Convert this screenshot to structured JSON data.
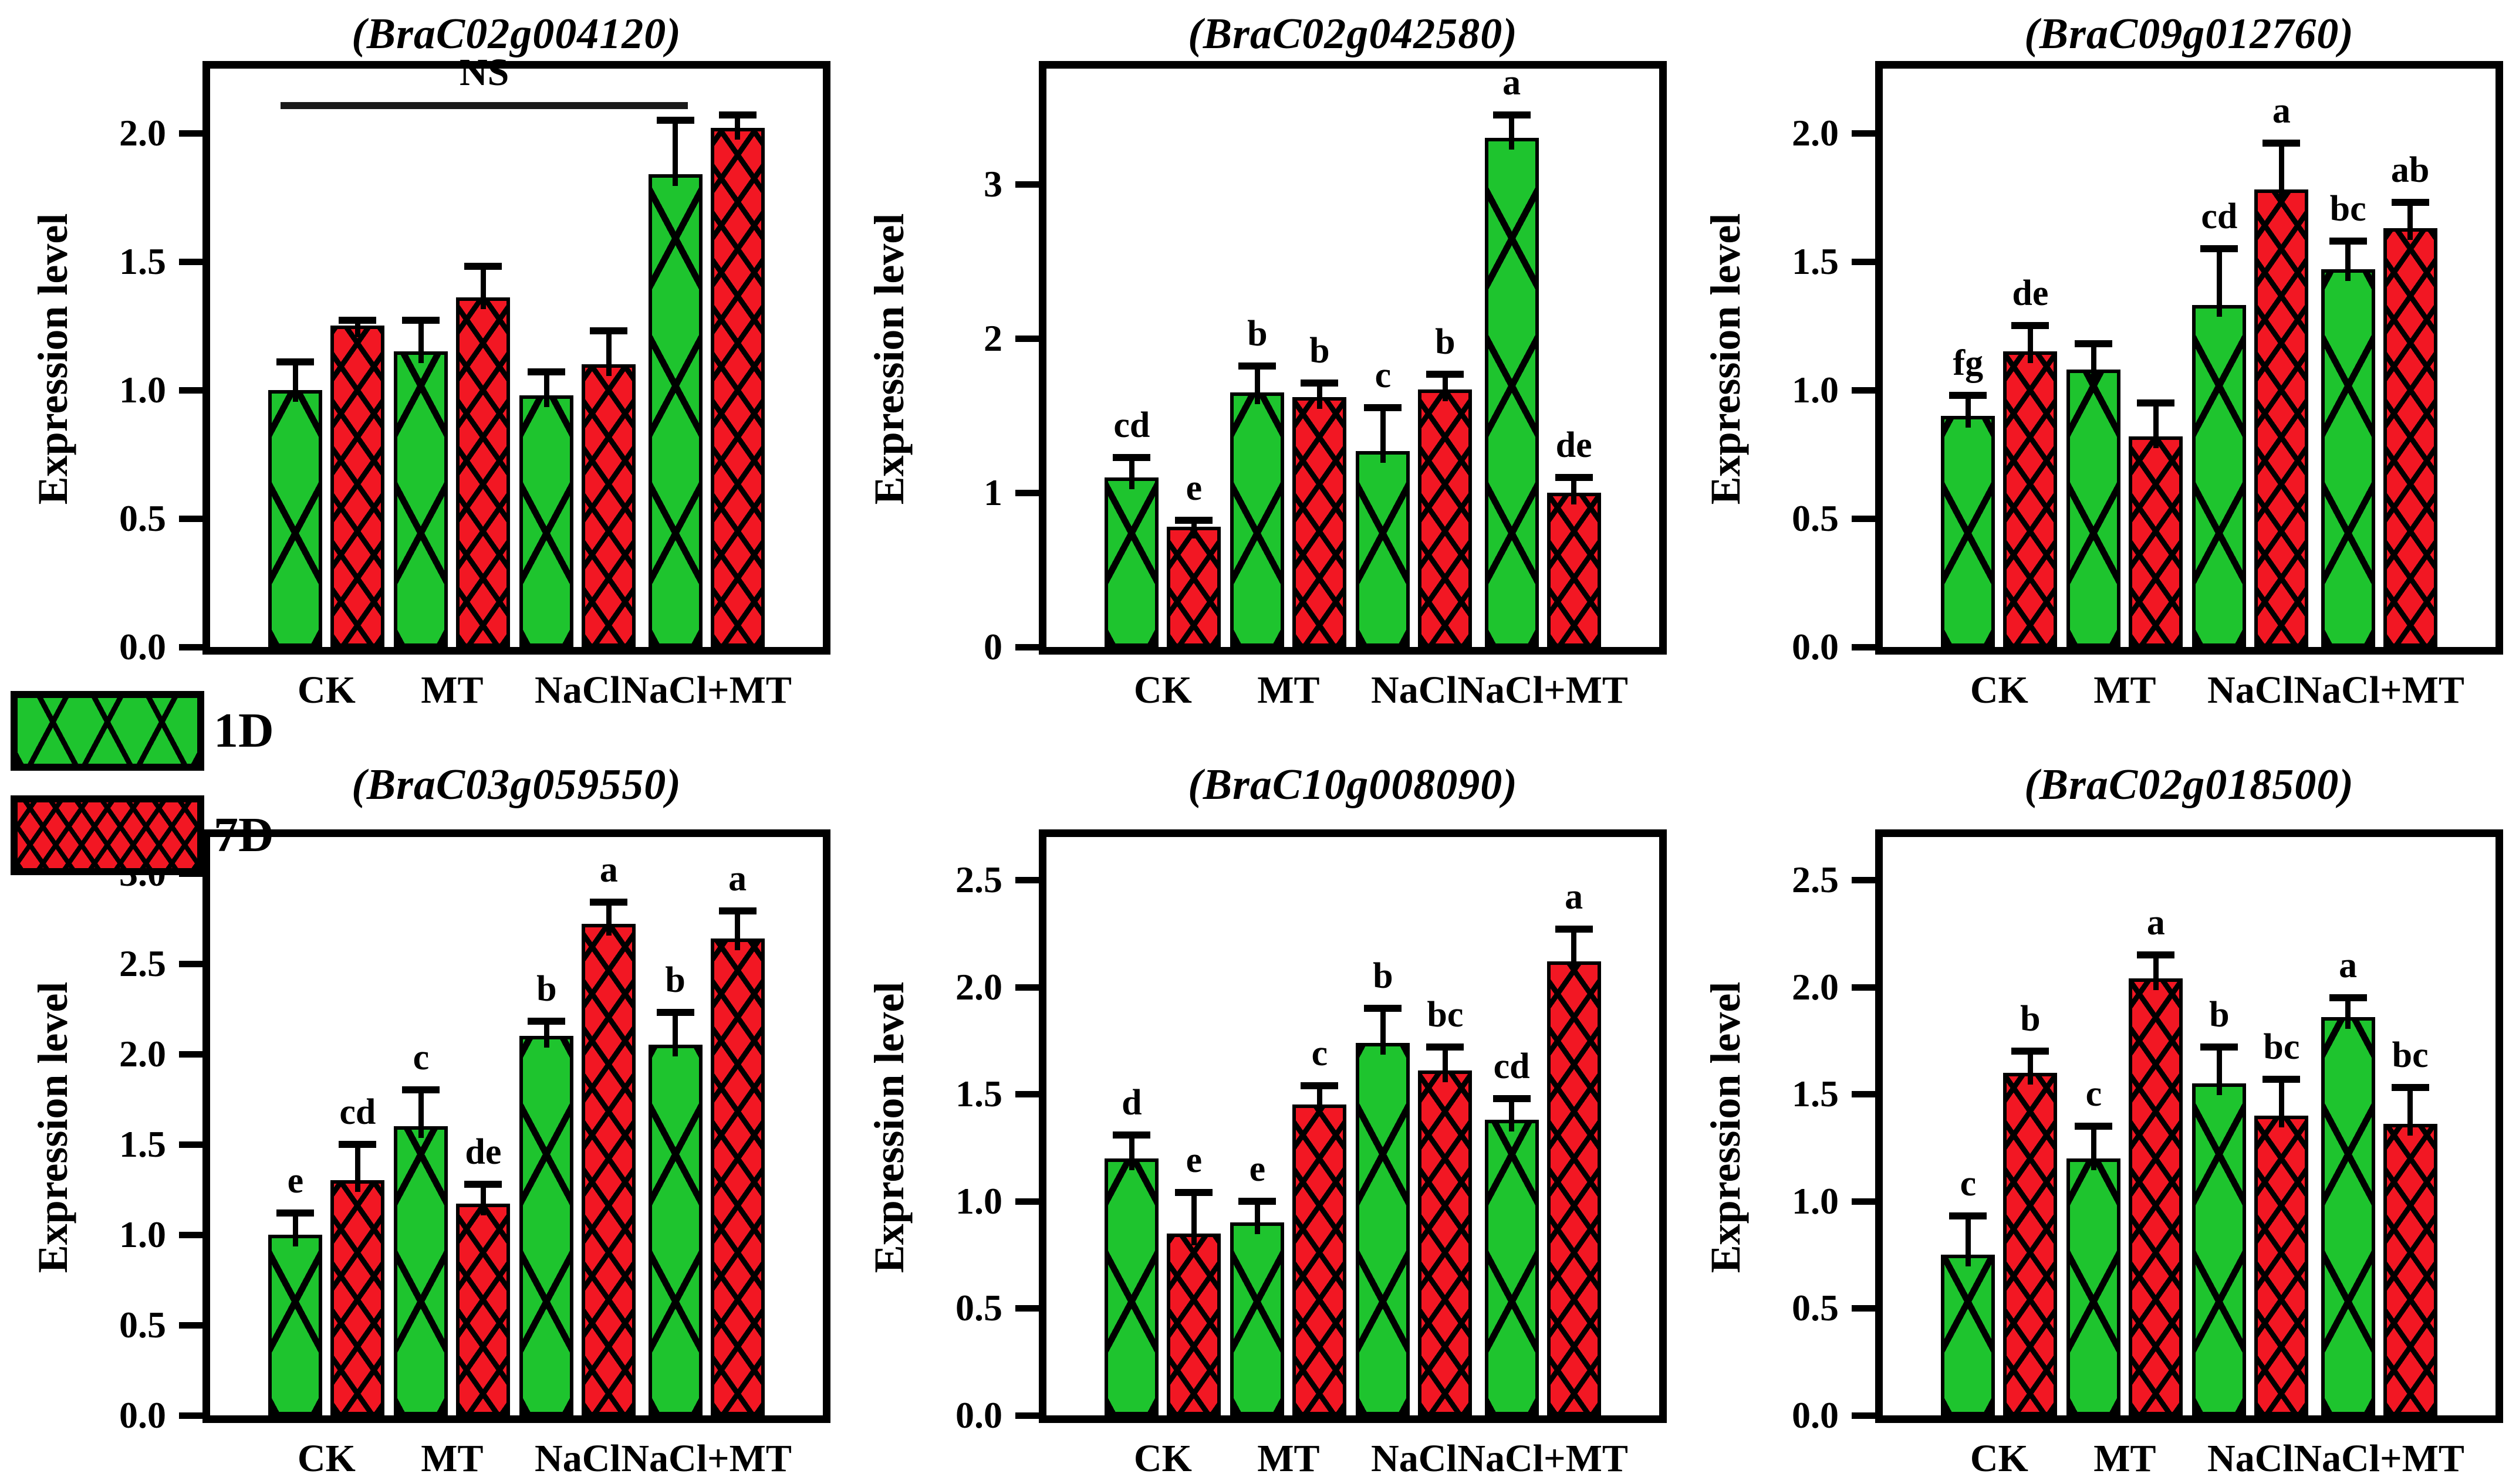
{
  "figure_title": "",
  "chart_data": {
    "type": "bar",
    "grid": false,
    "legend_position": "left-middle",
    "ylabel": "Expression level",
    "categories": [
      "CK",
      "MT",
      "NaCl",
      "NaCl+MT"
    ],
    "legend": {
      "items": [
        {
          "label": "1D",
          "color": "#1ec42e",
          "pattern": "wide-crosshatch"
        },
        {
          "label": "7D",
          "color": "#f21723",
          "pattern": "fine-crosshatch"
        }
      ]
    },
    "charts": [
      {
        "type": "bar",
        "title": "(BraC02g004120)",
        "ylabel": "Expression level",
        "xlabel": "",
        "categories": [
          "CK",
          "MT",
          "NaCl",
          "NaCl+MT"
        ],
        "ylim": [
          0,
          2.25
        ],
        "yticks": [
          {
            "v": 0.0,
            "label": "0.0"
          },
          {
            "v": 0.5,
            "label": "0.5"
          },
          {
            "v": 1.0,
            "label": "1.0"
          },
          {
            "v": 1.5,
            "label": "1.5"
          },
          {
            "v": 2.0,
            "label": "2.0"
          }
        ],
        "annotation": {
          "text": "NS",
          "value": 2.12,
          "from": 0.115,
          "to": 0.78
        },
        "series": [
          {
            "name": "1D",
            "values": [
              1.0,
              1.15,
              0.98,
              1.84
            ],
            "errors": [
              0.11,
              0.12,
              0.09,
              0.21
            ],
            "letters": [
              "",
              "",
              "",
              ""
            ]
          },
          {
            "name": "7D",
            "values": [
              1.25,
              1.36,
              1.1,
              2.02
            ],
            "errors": [
              0.02,
              0.12,
              0.13,
              0.05
            ],
            "letters": [
              "",
              "",
              "",
              ""
            ]
          }
        ]
      },
      {
        "type": "bar",
        "title": "(BraC02g042580)",
        "ylabel": "Expression level",
        "xlabel": "",
        "categories": [
          "CK",
          "MT",
          "NaCl",
          "NaCl+MT"
        ],
        "ylim": [
          0,
          3.75
        ],
        "yticks": [
          {
            "v": 0,
            "label": "0"
          },
          {
            "v": 1,
            "label": "1"
          },
          {
            "v": 2,
            "label": "2"
          },
          {
            "v": 3,
            "label": "3"
          }
        ],
        "annotation": null,
        "series": [
          {
            "name": "1D",
            "values": [
              1.1,
              1.65,
              1.27,
              3.3
            ],
            "errors": [
              0.13,
              0.17,
              0.28,
              0.15
            ],
            "letters": [
              "cd",
              "b",
              "c",
              "a"
            ]
          },
          {
            "name": "7D",
            "values": [
              0.78,
              1.62,
              1.67,
              1.0
            ],
            "errors": [
              0.04,
              0.09,
              0.1,
              0.1
            ],
            "letters": [
              "e",
              "b",
              "b",
              "de"
            ]
          }
        ]
      },
      {
        "type": "bar",
        "title": "(BraC09g012760)",
        "ylabel": "Expression level",
        "xlabel": "",
        "categories": [
          "CK",
          "MT",
          "NaCl",
          "NaCl+MT"
        ],
        "ylim": [
          0,
          2.25
        ],
        "yticks": [
          {
            "v": 0.0,
            "label": "0.0"
          },
          {
            "v": 0.5,
            "label": "0.5"
          },
          {
            "v": 1.0,
            "label": "1.0"
          },
          {
            "v": 1.5,
            "label": "1.5"
          },
          {
            "v": 2.0,
            "label": "2.0"
          }
        ],
        "annotation": null,
        "series": [
          {
            "name": "1D",
            "values": [
              0.9,
              1.08,
              1.33,
              1.47
            ],
            "errors": [
              0.08,
              0.1,
              0.22,
              0.11
            ],
            "letters": [
              "fg",
              "",
              "cd",
              "bc"
            ]
          },
          {
            "name": "7D",
            "values": [
              1.15,
              0.82,
              1.78,
              1.63
            ],
            "errors": [
              0.1,
              0.13,
              0.18,
              0.1
            ],
            "letters": [
              "de",
              "",
              "a",
              "ab"
            ]
          }
        ]
      },
      {
        "type": "bar",
        "title": "(BraC03g059550)",
        "ylabel": "Expression level",
        "xlabel": "",
        "categories": [
          "CK",
          "MT",
          "NaCl",
          "NaCl+MT"
        ],
        "ylim": [
          0,
          3.2
        ],
        "yticks": [
          {
            "v": 0.0,
            "label": "0.0"
          },
          {
            "v": 0.5,
            "label": "0.5"
          },
          {
            "v": 1.0,
            "label": "1.0"
          },
          {
            "v": 1.5,
            "label": "1.5"
          },
          {
            "v": 2.0,
            "label": "2.0"
          },
          {
            "v": 2.5,
            "label": "2.5"
          },
          {
            "v": 3.0,
            "label": "3.0"
          }
        ],
        "annotation": null,
        "series": [
          {
            "name": "1D",
            "values": [
              1.0,
              1.6,
              2.1,
              2.05
            ],
            "errors": [
              0.12,
              0.2,
              0.08,
              0.18
            ],
            "letters": [
              "e",
              "c",
              "b",
              "b"
            ]
          },
          {
            "name": "7D",
            "values": [
              1.3,
              1.17,
              2.72,
              2.64
            ],
            "errors": [
              0.2,
              0.11,
              0.12,
              0.15
            ],
            "letters": [
              "cd",
              "de",
              "a",
              "a"
            ]
          }
        ]
      },
      {
        "type": "bar",
        "title": "(BraC10g008090)",
        "ylabel": "Expression level",
        "xlabel": "",
        "categories": [
          "CK",
          "MT",
          "NaCl",
          "NaCl+MT"
        ],
        "ylim": [
          0,
          2.7
        ],
        "yticks": [
          {
            "v": 0.0,
            "label": "0.0"
          },
          {
            "v": 0.5,
            "label": "0.5"
          },
          {
            "v": 1.0,
            "label": "1.0"
          },
          {
            "v": 1.5,
            "label": "1.5"
          },
          {
            "v": 2.0,
            "label": "2.0"
          },
          {
            "v": 2.5,
            "label": "2.5"
          }
        ],
        "annotation": null,
        "series": [
          {
            "name": "1D",
            "values": [
              1.2,
              0.9,
              1.74,
              1.38
            ],
            "errors": [
              0.11,
              0.1,
              0.16,
              0.1
            ],
            "letters": [
              "d",
              "e",
              "b",
              "cd"
            ]
          },
          {
            "name": "7D",
            "values": [
              0.85,
              1.45,
              1.61,
              2.12
            ],
            "errors": [
              0.19,
              0.09,
              0.11,
              0.15
            ],
            "letters": [
              "e",
              "c",
              "bc",
              "a"
            ]
          }
        ]
      },
      {
        "type": "bar",
        "title": "(BraC02g018500)",
        "ylabel": "Expression level",
        "xlabel": "",
        "categories": [
          "CK",
          "MT",
          "NaCl",
          "NaCl+MT"
        ],
        "ylim": [
          0,
          2.7
        ],
        "yticks": [
          {
            "v": 0.0,
            "label": "0.0"
          },
          {
            "v": 0.5,
            "label": "0.5"
          },
          {
            "v": 1.0,
            "label": "1.0"
          },
          {
            "v": 1.5,
            "label": "1.5"
          },
          {
            "v": 2.0,
            "label": "2.0"
          },
          {
            "v": 2.5,
            "label": "2.5"
          }
        ],
        "annotation": null,
        "series": [
          {
            "name": "1D",
            "values": [
              0.75,
              1.2,
              1.55,
              1.86
            ],
            "errors": [
              0.18,
              0.15,
              0.17,
              0.09
            ],
            "letters": [
              "c",
              "c",
              "b",
              "a"
            ]
          },
          {
            "name": "7D",
            "values": [
              1.6,
              2.04,
              1.4,
              1.36
            ],
            "errors": [
              0.1,
              0.11,
              0.17,
              0.17
            ],
            "letters": [
              "b",
              "a",
              "bc",
              "bc"
            ]
          }
        ]
      }
    ]
  }
}
